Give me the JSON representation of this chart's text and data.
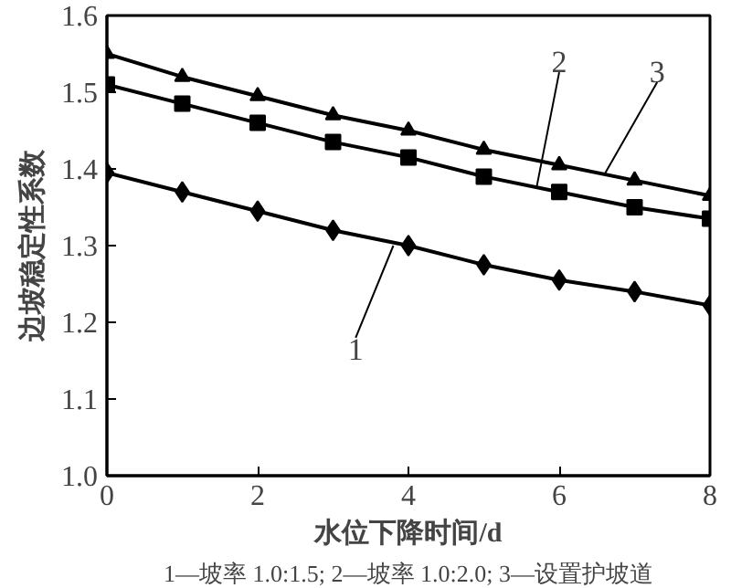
{
  "chart_data": {
    "type": "line",
    "xlabel": "水位下降时间/d",
    "ylabel": "边坡稳定性系数",
    "x": [
      0,
      1,
      2,
      3,
      4,
      5,
      6,
      7,
      8
    ],
    "series": [
      {
        "name": "1",
        "color": "#000000",
        "marker": "diamond",
        "values": [
          1.395,
          1.37,
          1.345,
          1.32,
          1.3,
          1.275,
          1.255,
          1.24,
          1.222
        ]
      },
      {
        "name": "2",
        "color": "#000000",
        "marker": "square",
        "values": [
          1.51,
          1.485,
          1.46,
          1.435,
          1.415,
          1.39,
          1.37,
          1.35,
          1.335
        ]
      },
      {
        "name": "3",
        "color": "#000000",
        "marker": "triangle",
        "values": [
          1.55,
          1.52,
          1.495,
          1.47,
          1.45,
          1.425,
          1.405,
          1.385,
          1.365
        ]
      }
    ],
    "xlim": [
      0,
      8
    ],
    "xticks": [
      0,
      2,
      4,
      6,
      8
    ],
    "ylim": [
      1.0,
      1.6
    ],
    "yticks": [
      {
        "value": 1.0,
        "label": "1.0"
      },
      {
        "value": 1.1,
        "label": "1.1"
      },
      {
        "value": 1.2,
        "label": "1.2"
      },
      {
        "value": 1.3,
        "label": "1.3"
      },
      {
        "value": 1.4,
        "label": "1.4"
      },
      {
        "value": 1.5,
        "label": "1.5"
      },
      {
        "value": 1.6,
        "label": "1.6"
      }
    ],
    "grid": false,
    "line_style": "solid",
    "annotations": [
      "1—坡率 1.0:1.5; 2—坡率 1.0:2.0; 3—设置护坡道"
    ]
  }
}
